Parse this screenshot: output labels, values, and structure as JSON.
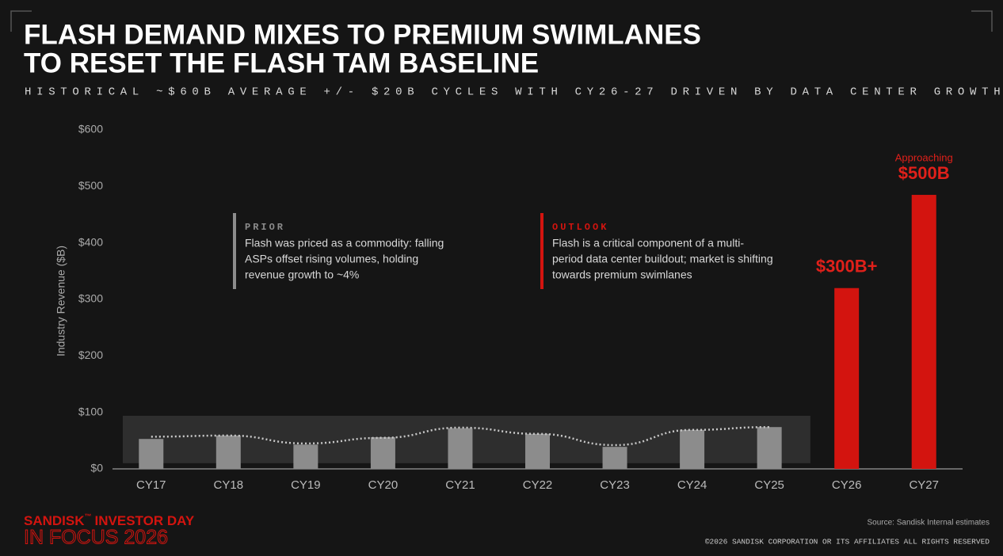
{
  "chart_data": {
    "type": "bar",
    "title": [
      "FLASH DEMAND MIXES TO PREMIUM SWIMLANES",
      "TO RESET THE FLASH TAM BASELINE"
    ],
    "subtitle": "HISTORICAL ~$60B AVERAGE +/- $20B CYCLES WITH CY26-27 DRIVEN BY DATA CENTER GROWTH",
    "y_label": "Industry Revenue ($B)",
    "categories": [
      "CY17",
      "CY18",
      "CY19",
      "CY20",
      "CY21",
      "CY22",
      "CY23",
      "CY24",
      "CY25",
      "CY26",
      "CY27"
    ],
    "values": [
      53,
      59,
      43,
      56,
      72,
      62,
      39,
      69,
      74,
      320,
      485
    ],
    "colors": [
      "#8c8c8c",
      "#8c8c8c",
      "#8c8c8c",
      "#8c8c8c",
      "#8c8c8c",
      "#8c8c8c",
      "#8c8c8c",
      "#8c8c8c",
      "#8c8c8c",
      "#d3140f",
      "#d3140f"
    ],
    "trend": {
      "values": [
        57,
        59,
        45,
        55,
        73,
        62,
        42,
        69,
        74,
        null,
        null
      ],
      "color": "#c8c8c8"
    },
    "shaded_range": [
      10,
      94
    ],
    "ylim": [
      0,
      600
    ],
    "yticks": [
      {
        "value": 0,
        "label": "$0"
      },
      {
        "value": 100,
        "label": "$100"
      },
      {
        "value": 200,
        "label": "$200"
      },
      {
        "value": 300,
        "label": "$300"
      },
      {
        "value": 400,
        "label": "$400"
      },
      {
        "value": 500,
        "label": "$500"
      },
      {
        "value": 600,
        "label": "$600"
      }
    ],
    "grid": false,
    "annotations": [
      {
        "heading": "PRIOR",
        "lines": [
          "Flash was priced as a commodity: falling",
          "ASPs offset rising volumes, holding",
          "revenue growth to ~4%"
        ],
        "color": "#8c8c8c"
      },
      {
        "heading": "OUTLOOK",
        "lines": [
          "Flash is a critical component of a multi-",
          "period data center buildout; market is shifting",
          "towards premium swimlanes"
        ],
        "color": "#d3140f"
      }
    ],
    "bar_callouts": [
      {
        "category": 9,
        "text": "$300B+"
      },
      {
        "category": 10,
        "small": "Approaching",
        "text": "$500B"
      }
    ]
  },
  "footer": {
    "brand": "SANDISK",
    "tm": "™",
    "event": "INVESTOR DAY",
    "tagline": "IN FOCUS 2026",
    "source": "Source: Sandisk Internal estimates",
    "copyright": "©2026 SANDISK CORPORATION OR ITS AFFILIATES ALL RIGHTS RESERVED"
  }
}
